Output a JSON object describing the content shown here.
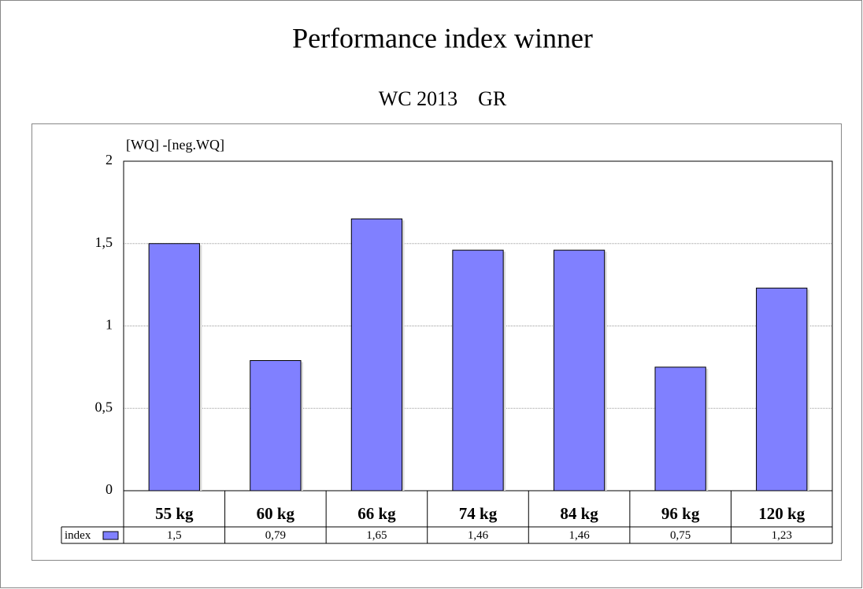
{
  "chart_data": {
    "type": "bar",
    "title": "Performance index winner",
    "subtitle": "WC 2013    GR",
    "y_label": "[WQ] -[neg.WQ]",
    "categories": [
      "55 kg",
      "60 kg",
      "66 kg",
      "74 kg",
      "84 kg",
      "96 kg",
      "120 kg"
    ],
    "series": [
      {
        "name": "index",
        "color": "#8080ff",
        "values": [
          1.5,
          0.79,
          1.65,
          1.46,
          1.46,
          0.75,
          1.23
        ],
        "value_labels": [
          "1,5",
          "0,79",
          "1,65",
          "1,46",
          "1,46",
          "0,75",
          "1,23"
        ]
      }
    ],
    "ylim": [
      0,
      2
    ],
    "yticks": [
      0,
      {
        "value": 0.5,
        "label": "0,5"
      },
      1,
      {
        "value": 1.5,
        "label": "1,5"
      },
      2
    ],
    "grid": true
  }
}
